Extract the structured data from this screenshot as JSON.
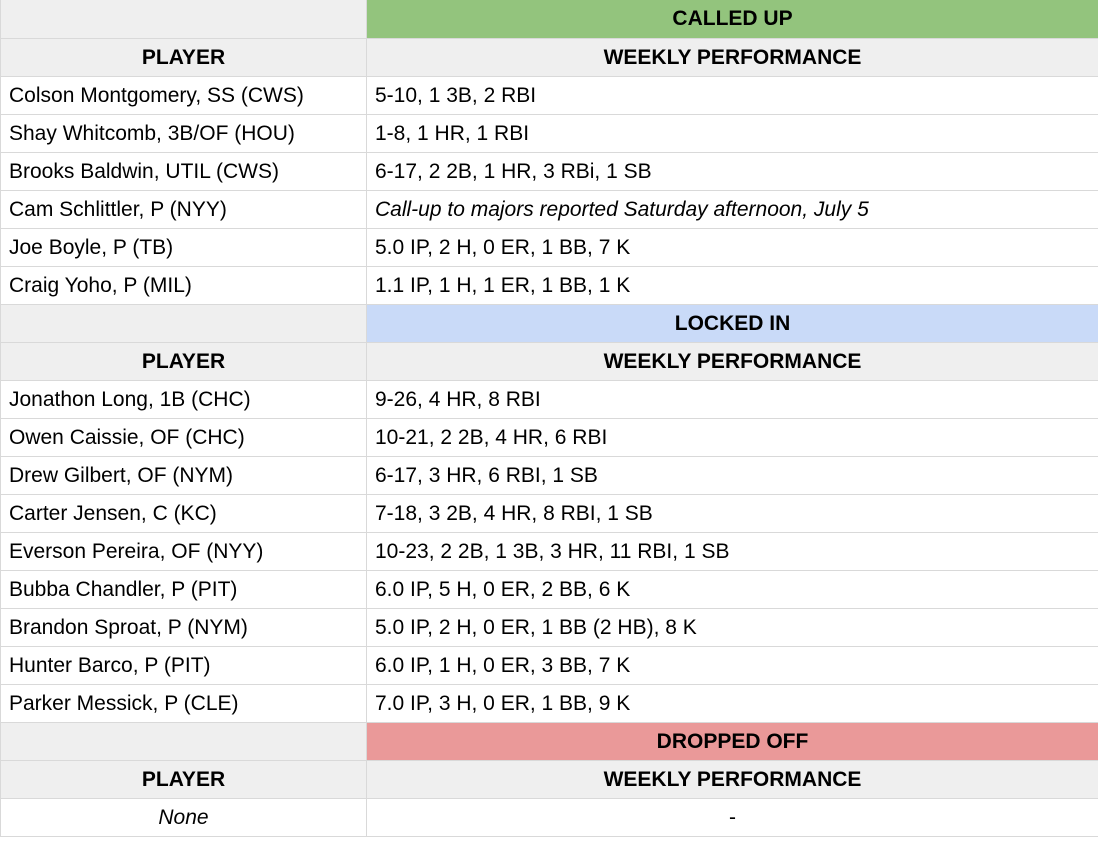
{
  "colors": {
    "called_up": "#93c47d",
    "locked_in": "#c9daf8",
    "dropped_off": "#ea9999",
    "header_gray": "#efefef",
    "grid": "#d9d9d9"
  },
  "sections": [
    {
      "title": "CALLED UP",
      "player_header": "PLAYER",
      "performance_header": "WEEKLY PERFORMANCE",
      "rows": [
        {
          "player": "Colson Montgomery, SS (CWS)",
          "performance": "5-10, 1 3B, 2 RBI"
        },
        {
          "player": "Shay Whitcomb, 3B/OF (HOU)",
          "performance": "1-8, 1 HR, 1 RBI"
        },
        {
          "player": "Brooks Baldwin, UTIL (CWS)",
          "performance": "6-17, 2 2B, 1 HR, 3 RBi, 1 SB"
        },
        {
          "player": "Cam Schlittler, P (NYY)",
          "performance": "Call-up to majors reported Saturday afternoon, July 5"
        },
        {
          "player": "Joe Boyle, P (TB)",
          "performance": "5.0 IP, 2 H, 0 ER, 1 BB, 7 K"
        },
        {
          "player": "Craig Yoho, P (MIL)",
          "performance": "1.1 IP, 1 H, 1 ER, 1 BB, 1 K"
        }
      ]
    },
    {
      "title": "LOCKED IN",
      "player_header": "PLAYER",
      "performance_header": "WEEKLY PERFORMANCE",
      "rows": [
        {
          "player": "Jonathon Long, 1B (CHC)",
          "performance": "9-26, 4 HR, 8 RBI"
        },
        {
          "player": "Owen Caissie, OF (CHC)",
          "performance": "10-21, 2 2B, 4 HR, 6 RBI"
        },
        {
          "player": "Drew Gilbert, OF (NYM)",
          "performance": "6-17, 3 HR, 6 RBI, 1 SB"
        },
        {
          "player": "Carter Jensen, C (KC)",
          "performance": "7-18, 3 2B, 4 HR, 8 RBI, 1 SB"
        },
        {
          "player": "Everson Pereira, OF (NYY)",
          "performance": "10-23, 2 2B, 1 3B, 3 HR, 11 RBI, 1 SB"
        },
        {
          "player": "Bubba Chandler, P (PIT)",
          "performance": "6.0 IP, 5 H, 0 ER, 2 BB, 6 K"
        },
        {
          "player": "Brandon Sproat, P (NYM)",
          "performance": "5.0 IP, 2 H, 0 ER, 1 BB (2 HB), 8 K"
        },
        {
          "player": "Hunter Barco, P (PIT)",
          "performance": "6.0 IP, 1 H, 0 ER, 3 BB, 7 K"
        },
        {
          "player": "Parker Messick, P (CLE)",
          "performance": "7.0 IP, 3 H, 0 ER, 1 BB, 9 K"
        }
      ]
    },
    {
      "title": "DROPPED OFF",
      "player_header": "PLAYER",
      "performance_header": "WEEKLY PERFORMANCE",
      "rows": [
        {
          "player": "None",
          "performance": "-"
        }
      ]
    }
  ]
}
